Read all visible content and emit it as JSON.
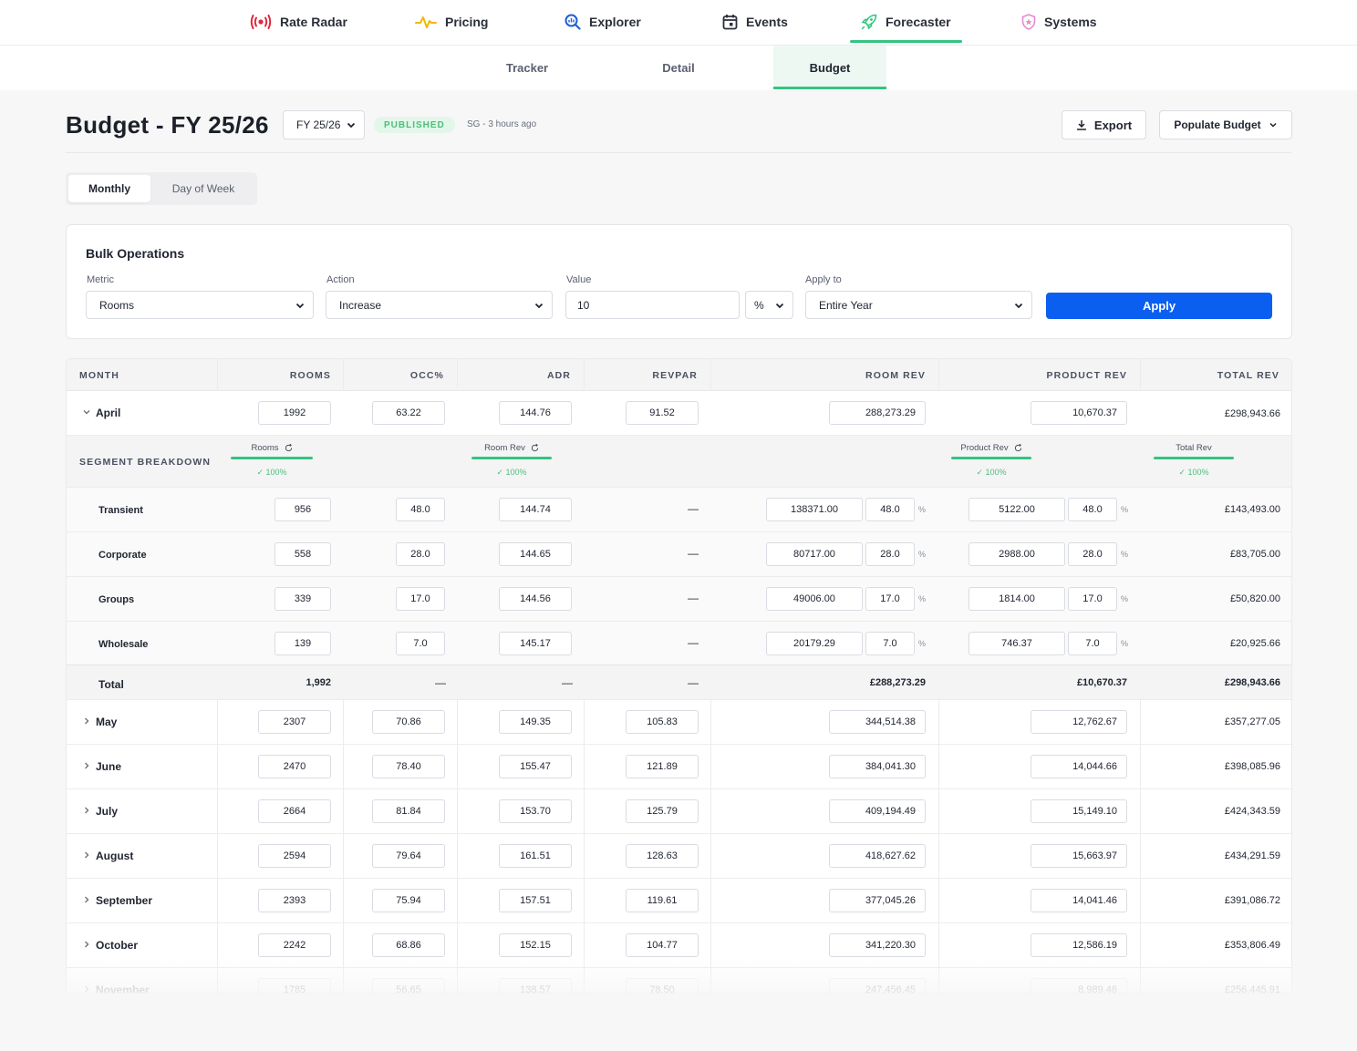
{
  "nav": {
    "items": [
      {
        "label": "Rate Radar",
        "icon": "broadcast-icon"
      },
      {
        "label": "Pricing",
        "icon": "pulse-icon"
      },
      {
        "label": "Explorer",
        "icon": "magnifier-chart-icon"
      },
      {
        "label": "Events",
        "icon": "calendar-icon"
      },
      {
        "label": "Forecaster",
        "icon": "rocket-icon"
      },
      {
        "label": "Systems",
        "icon": "shield-star-icon"
      }
    ],
    "active": "Forecaster"
  },
  "subnav": {
    "tabs": [
      "Tracker",
      "Detail",
      "Budget"
    ],
    "active": "Budget"
  },
  "header": {
    "title": "Budget - FY 25/26",
    "fy_value": "FY 25/26",
    "status": "PUBLISHED",
    "meta": "SG - 3 hours ago",
    "export_label": "Export",
    "populate_label": "Populate Budget"
  },
  "view_toggle": {
    "options": [
      "Monthly",
      "Day of Week"
    ],
    "active": "Monthly"
  },
  "bulk": {
    "title": "Bulk Operations",
    "metric_label": "Metric",
    "metric_value": "Rooms",
    "action_label": "Action",
    "action_value": "Increase",
    "value_label": "Value",
    "value_value": "10",
    "unit_value": "%",
    "apply_to_label": "Apply to",
    "apply_to_value": "Entire Year",
    "apply_label": "Apply"
  },
  "table": {
    "columns": [
      "MONTH",
      "ROOMS",
      "OCC%",
      "ADR",
      "REVPAR",
      "ROOM REV",
      "PRODUCT REV",
      "TOTAL REV"
    ],
    "april": {
      "name": "April",
      "rooms": "1992",
      "occ": "63.22",
      "adr": "144.76",
      "revpar": "91.52",
      "room_rev": "288,273.29",
      "product_rev": "10,670.37",
      "total_rev": "£298,943.66"
    },
    "segment_breakdown": {
      "label": "SEGMENT BREAKDOWN",
      "chips": [
        {
          "title": "Rooms",
          "ok": "✓ 100%"
        },
        {
          "title": "Room Rev",
          "ok": "✓ 100%"
        },
        {
          "title": "Product Rev",
          "ok": "✓ 100%"
        },
        {
          "title": "Total Rev",
          "ok": "✓ 100%"
        }
      ]
    },
    "segments": [
      {
        "name": "Transient",
        "rooms": "956",
        "occ": "48.0",
        "adr": "144.74",
        "revpar": "—",
        "room_rev": "138371.00",
        "room_pct": "48.0",
        "prod_rev": "5122.00",
        "prod_pct": "48.0",
        "total": "£143,493.00"
      },
      {
        "name": "Corporate",
        "rooms": "558",
        "occ": "28.0",
        "adr": "144.65",
        "revpar": "—",
        "room_rev": "80717.00",
        "room_pct": "28.0",
        "prod_rev": "2988.00",
        "prod_pct": "28.0",
        "total": "£83,705.00"
      },
      {
        "name": "Groups",
        "rooms": "339",
        "occ": "17.0",
        "adr": "144.56",
        "revpar": "—",
        "room_rev": "49006.00",
        "room_pct": "17.0",
        "prod_rev": "1814.00",
        "prod_pct": "17.0",
        "total": "£50,820.00"
      },
      {
        "name": "Wholesale",
        "rooms": "139",
        "occ": "7.0",
        "adr": "145.17",
        "revpar": "—",
        "room_rev": "20179.29",
        "room_pct": "7.0",
        "prod_rev": "746.37",
        "prod_pct": "7.0",
        "total": "£20,925.66"
      }
    ],
    "pct_sign": "%",
    "total_row": {
      "name": "Total",
      "rooms": "1,992",
      "occ": "—",
      "adr": "—",
      "revpar": "—",
      "room_rev": "£288,273.29",
      "product_rev": "£10,670.37",
      "total_rev": "£298,943.66"
    },
    "months": [
      {
        "name": "May",
        "rooms": "2307",
        "occ": "70.86",
        "adr": "149.35",
        "revpar": "105.83",
        "room_rev": "344,514.38",
        "product_rev": "12,762.67",
        "total_rev": "£357,277.05"
      },
      {
        "name": "June",
        "rooms": "2470",
        "occ": "78.40",
        "adr": "155.47",
        "revpar": "121.89",
        "room_rev": "384,041.30",
        "product_rev": "14,044.66",
        "total_rev": "£398,085.96"
      },
      {
        "name": "July",
        "rooms": "2664",
        "occ": "81.84",
        "adr": "153.70",
        "revpar": "125.79",
        "room_rev": "409,194.49",
        "product_rev": "15,149.10",
        "total_rev": "£424,343.59"
      },
      {
        "name": "August",
        "rooms": "2594",
        "occ": "79.64",
        "adr": "161.51",
        "revpar": "128.63",
        "room_rev": "418,627.62",
        "product_rev": "15,663.97",
        "total_rev": "£434,291.59"
      },
      {
        "name": "September",
        "rooms": "2393",
        "occ": "75.94",
        "adr": "157.51",
        "revpar": "119.61",
        "room_rev": "377,045.26",
        "product_rev": "14,041.46",
        "total_rev": "£391,086.72"
      },
      {
        "name": "October",
        "rooms": "2242",
        "occ": "68.86",
        "adr": "152.15",
        "revpar": "104.77",
        "room_rev": "341,220.30",
        "product_rev": "12,586.19",
        "total_rev": "£353,806.49"
      },
      {
        "name": "November",
        "rooms": "1785",
        "occ": "56.65",
        "adr": "138.57",
        "revpar": "78.50",
        "room_rev": "247,456.45",
        "product_rev": "8,989.46",
        "total_rev": "£256,445.91"
      }
    ]
  },
  "colors": {
    "accent_green": "#33c481",
    "primary_blue": "#0a5ff0",
    "published_green": "#4cbf78"
  }
}
